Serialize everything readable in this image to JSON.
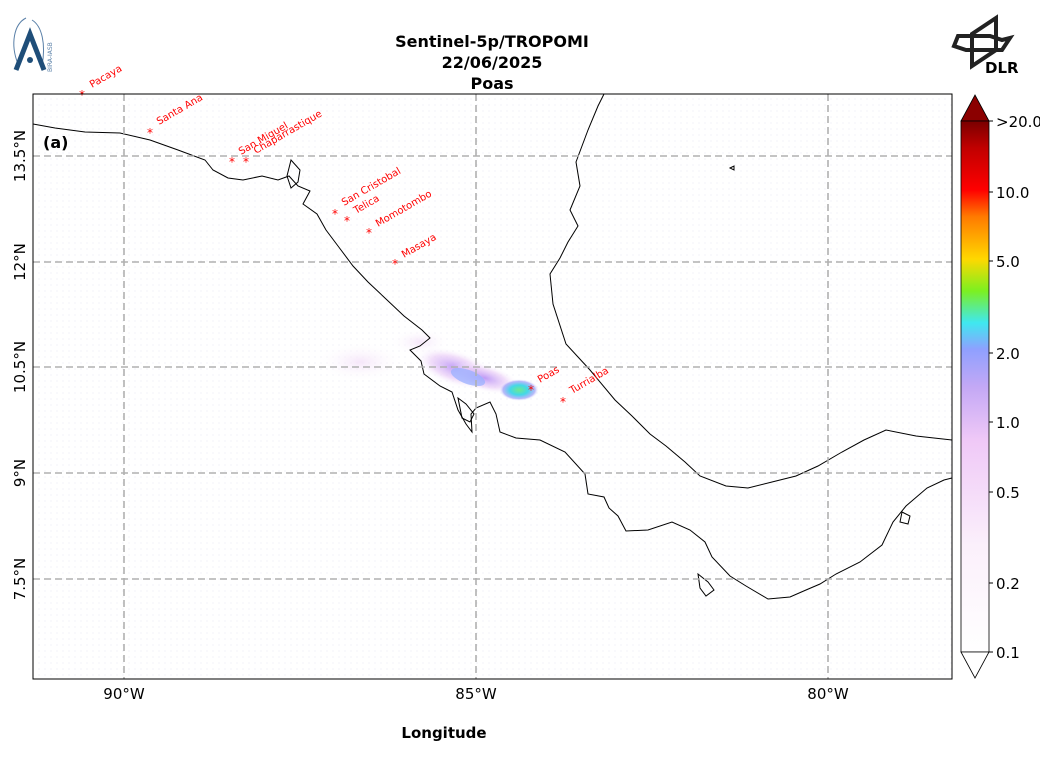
{
  "title": {
    "line1": "Sentinel-5p/TROPOMI",
    "line2": "22/06/2025",
    "line3": "Poas"
  },
  "logos": {
    "left_icon": "bira-iasb-logo",
    "left_text": "BIRA-IASB",
    "right_icon": "dlr-logo",
    "right_text": "DLR"
  },
  "panel_label": "(a)",
  "axes": {
    "xlabel": "Longitude",
    "x_ticks": [
      "90°W",
      "85°W",
      "80°W"
    ],
    "y_ticks": [
      "13.5°N",
      "12°N",
      "10.5°N",
      "9°N",
      "7.5°N"
    ]
  },
  "colorbar": {
    "tick_labels": [
      ">20.0",
      "10.0",
      "5.0",
      "2.0",
      "1.0",
      "0.5",
      "0.2",
      "0.1"
    ],
    "colors": [
      "#ffffff",
      "#f6d8f8",
      "#e6a8f5",
      "#8fa0ff",
      "#3fe8f0",
      "#7cf020",
      "#ffd800",
      "#ff7a00",
      "#ff0000",
      "#d00000",
      "#7a0000"
    ]
  },
  "volcanoes": [
    {
      "name": "Pacaya"
    },
    {
      "name": "Santa Ana"
    },
    {
      "name": "San Miguel"
    },
    {
      "name": "Chaparrastique"
    },
    {
      "name": "San Cristobal"
    },
    {
      "name": "Telica"
    },
    {
      "name": "Momotombo"
    },
    {
      "name": "Masaya"
    },
    {
      "name": "Poas"
    },
    {
      "name": "Turrialba"
    }
  ],
  "colors": {
    "volcano_marker": "#ff0000",
    "gridline": "#b0b0b0",
    "coastline": "#000000"
  }
}
